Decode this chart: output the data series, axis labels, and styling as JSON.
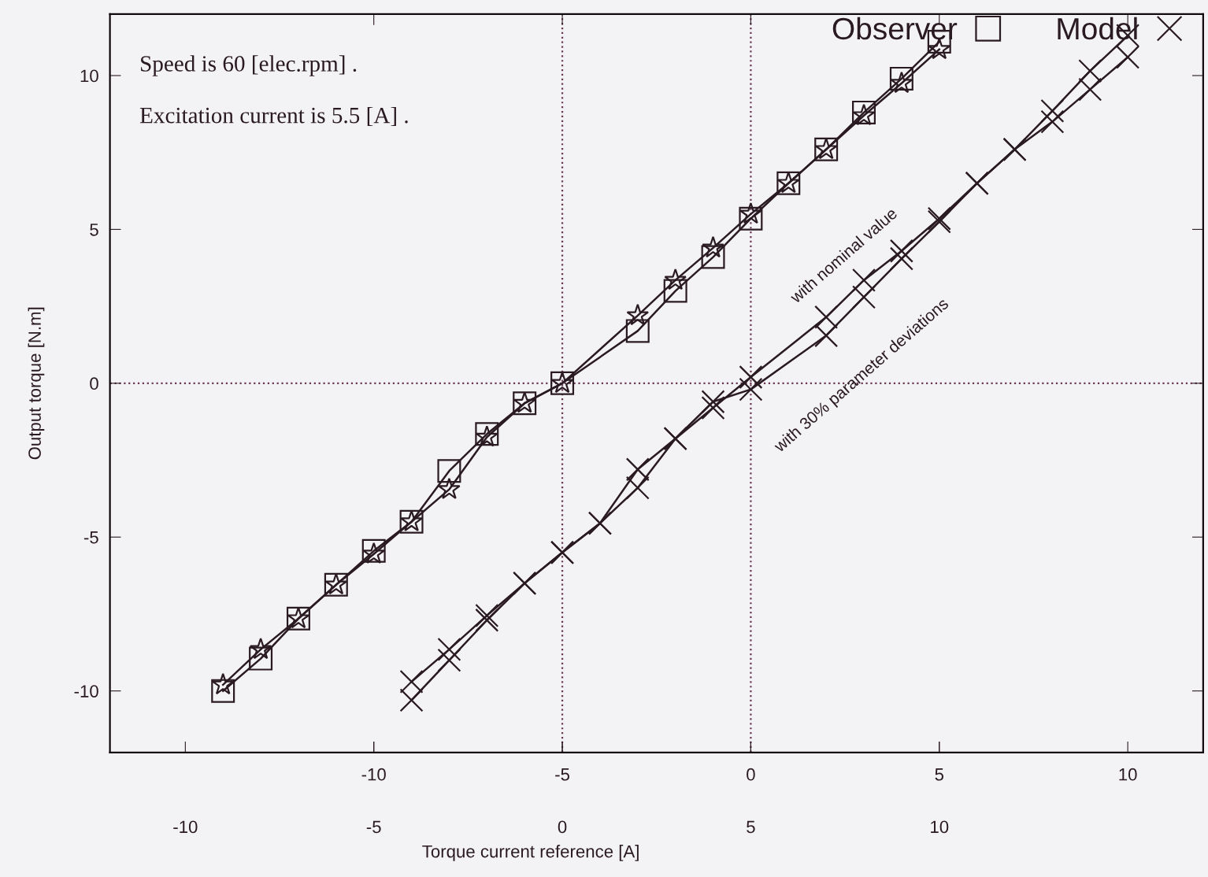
{
  "chart_data": {
    "type": "line",
    "xlabel": "Torque current reference [A]",
    "ylabel": "Output torque [N.m]",
    "xlim": [
      -17,
      12
    ],
    "xticks": [
      -10,
      -5,
      0,
      5,
      10
    ],
    "x2lim": [
      -12,
      17
    ],
    "x2ticks": [
      -10,
      -5,
      0,
      5,
      10
    ],
    "ylim": [
      -12,
      12
    ],
    "yticks": [
      -10,
      -5,
      0,
      5,
      10
    ],
    "grid": false,
    "legend": "top right",
    "series": [
      {
        "name": "Observer",
        "color": "#2a1a22",
        "marker": "square",
        "axis": "x2",
        "x": [
          -9,
          -8,
          -7,
          -6,
          -5,
          -4,
          -3,
          -2,
          -1,
          0,
          2,
          3,
          4,
          5,
          6,
          7,
          8,
          9,
          10
        ],
        "values": [
          -10.0,
          -8.95,
          -7.65,
          -6.55,
          -5.45,
          -4.5,
          -2.85,
          -1.65,
          -0.65,
          0,
          1.7,
          3.0,
          4.1,
          5.35,
          6.5,
          7.6,
          8.8,
          9.9,
          11.1
        ]
      },
      {
        "color": "#2a1a22",
        "marker": "star",
        "axis": "x2",
        "x": [
          -9,
          -8,
          -7,
          -6,
          -5,
          -4,
          -3,
          -2,
          -1,
          0,
          2,
          3,
          4,
          5,
          6,
          7,
          8,
          9,
          10
        ],
        "values": [
          -9.8,
          -8.65,
          -7.65,
          -6.55,
          -5.55,
          -4.5,
          -3.45,
          -1.75,
          -0.65,
          0,
          2.2,
          3.35,
          4.4,
          5.5,
          6.5,
          7.6,
          8.7,
          9.75,
          10.85
        ]
      },
      {
        "name": "Model",
        "color": "#2a1a22",
        "marker": "cross",
        "x": [
          -9,
          -8,
          -7,
          -6,
          -5,
          -4,
          -3,
          -2,
          -1,
          0,
          2,
          3,
          4,
          5,
          6,
          7,
          8,
          9,
          10
        ],
        "values": [
          -10.3,
          -9.0,
          -7.7,
          -6.5,
          -5.5,
          -4.55,
          -2.8,
          -1.8,
          -0.8,
          0.2,
          2.15,
          3.35,
          4.3,
          5.35,
          6.5,
          7.6,
          8.85,
          10.15,
          11.3
        ]
      },
      {
        "color": "#2a1a22",
        "marker": "cross",
        "x": [
          -9,
          -8,
          -7,
          -6,
          -5,
          -4,
          -3,
          -2,
          -1,
          0,
          2,
          3,
          4,
          5,
          6,
          7,
          8,
          9,
          10
        ],
        "values": [
          -9.7,
          -8.65,
          -7.55,
          -6.5,
          -5.5,
          -4.55,
          -3.4,
          -1.8,
          -0.6,
          -0.2,
          1.55,
          2.8,
          4.05,
          5.25,
          6.5,
          7.6,
          8.5,
          9.55,
          10.6
        ]
      }
    ],
    "ref_lines": [
      {
        "axis": "x",
        "value": -5,
        "color": "#6a3a55",
        "line_style": "dotted"
      },
      {
        "axis": "x",
        "value": 0,
        "color": "#6a3a55",
        "line_style": "dotted"
      },
      {
        "axis": "y",
        "value": 0,
        "color": "#6a3a55",
        "line_style": "dotted"
      }
    ],
    "annotations": [
      "Speed is 60 [elec.rpm] .",
      "Excitation current is 5.5 [A] .",
      "with nominal value",
      "with 30% parameter deviations"
    ]
  }
}
